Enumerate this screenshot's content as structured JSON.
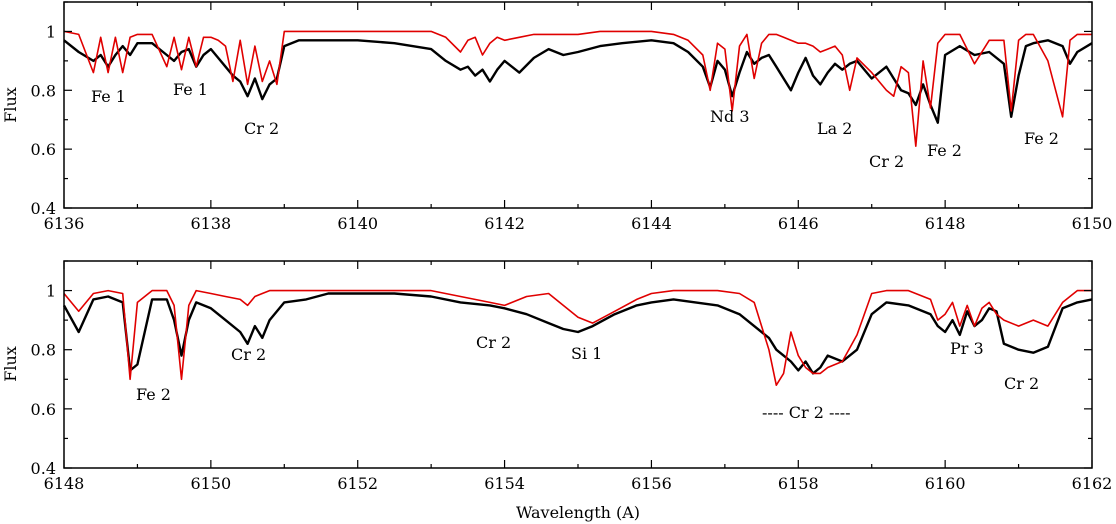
{
  "chart_data": [
    {
      "type": "line",
      "xlabel": "",
      "ylabel": "Flux",
      "xlim": [
        6136,
        6150
      ],
      "ylim": [
        0.4,
        1.1
      ],
      "xticks": [
        6136,
        6138,
        6140,
        6142,
        6144,
        6146,
        6148,
        6150
      ],
      "yticks": [
        0.4,
        0.6,
        0.8,
        1
      ],
      "grid": false,
      "series": [
        {
          "color": "#000000",
          "x": [
            6136.0,
            6136.2,
            6136.4,
            6136.5,
            6136.6,
            6136.7,
            6136.8,
            6136.9,
            6137.0,
            6137.2,
            6137.4,
            6137.5,
            6137.6,
            6137.7,
            6137.8,
            6137.9,
            6138.0,
            6138.1,
            6138.2,
            6138.3,
            6138.4,
            6138.5,
            6138.6,
            6138.7,
            6138.8,
            6138.9,
            6139.0,
            6139.2,
            6139.5,
            6140.0,
            6140.5,
            6141.0,
            6141.2,
            6141.4,
            6141.5,
            6141.6,
            6141.7,
            6141.8,
            6141.9,
            6142.0,
            6142.2,
            6142.4,
            6142.6,
            6142.8,
            6143.0,
            6143.3,
            6143.6,
            6144.0,
            6144.3,
            6144.5,
            6144.7,
            6144.8,
            6144.9,
            6145.0,
            6145.1,
            6145.2,
            6145.3,
            6145.4,
            6145.5,
            6145.6,
            6145.7,
            6145.8,
            6145.9,
            6146.0,
            6146.1,
            6146.2,
            6146.3,
            6146.4,
            6146.5,
            6146.6,
            6146.7,
            6146.8,
            6147.0,
            6147.2,
            6147.3,
            6147.4,
            6147.5,
            6147.6,
            6147.7,
            6147.8,
            6147.9,
            6148.0,
            6148.2,
            6148.4,
            6148.6,
            6148.8,
            6148.9,
            6149.0,
            6149.1,
            6149.2,
            6149.4,
            6149.6,
            6149.7,
            6149.8,
            6150.0
          ],
          "y": [
            0.97,
            0.93,
            0.9,
            0.92,
            0.88,
            0.92,
            0.95,
            0.92,
            0.96,
            0.96,
            0.92,
            0.9,
            0.93,
            0.94,
            0.88,
            0.92,
            0.94,
            0.91,
            0.88,
            0.85,
            0.83,
            0.78,
            0.84,
            0.77,
            0.82,
            0.84,
            0.95,
            0.97,
            0.97,
            0.97,
            0.96,
            0.94,
            0.9,
            0.87,
            0.88,
            0.85,
            0.87,
            0.83,
            0.87,
            0.9,
            0.86,
            0.91,
            0.94,
            0.92,
            0.93,
            0.95,
            0.96,
            0.97,
            0.96,
            0.93,
            0.88,
            0.81,
            0.9,
            0.87,
            0.78,
            0.86,
            0.93,
            0.89,
            0.91,
            0.92,
            0.88,
            0.84,
            0.8,
            0.86,
            0.91,
            0.85,
            0.82,
            0.86,
            0.89,
            0.87,
            0.89,
            0.9,
            0.84,
            0.88,
            0.84,
            0.8,
            0.79,
            0.75,
            0.82,
            0.75,
            0.69,
            0.92,
            0.95,
            0.92,
            0.93,
            0.89,
            0.71,
            0.85,
            0.95,
            0.96,
            0.97,
            0.95,
            0.89,
            0.93,
            0.96
          ]
        },
        {
          "color": "#e00000",
          "x": [
            6136.0,
            6136.2,
            6136.4,
            6136.5,
            6136.6,
            6136.7,
            6136.8,
            6136.9,
            6137.0,
            6137.2,
            6137.4,
            6137.5,
            6137.6,
            6137.7,
            6137.8,
            6137.9,
            6138.0,
            6138.1,
            6138.2,
            6138.3,
            6138.4,
            6138.5,
            6138.6,
            6138.7,
            6138.8,
            6138.9,
            6139.0,
            6139.2,
            6139.5,
            6140.0,
            6140.5,
            6141.0,
            6141.2,
            6141.4,
            6141.5,
            6141.6,
            6141.7,
            6141.8,
            6141.9,
            6142.0,
            6142.2,
            6142.4,
            6142.6,
            6142.8,
            6143.0,
            6143.3,
            6143.6,
            6144.0,
            6144.3,
            6144.5,
            6144.7,
            6144.8,
            6144.9,
            6145.0,
            6145.1,
            6145.2,
            6145.3,
            6145.4,
            6145.5,
            6145.6,
            6145.7,
            6145.8,
            6145.9,
            6146.0,
            6146.1,
            6146.2,
            6146.3,
            6146.4,
            6146.5,
            6146.6,
            6146.7,
            6146.8,
            6147.0,
            6147.2,
            6147.3,
            6147.4,
            6147.5,
            6147.6,
            6147.7,
            6147.8,
            6147.9,
            6148.0,
            6148.2,
            6148.4,
            6148.6,
            6148.8,
            6148.9,
            6149.0,
            6149.1,
            6149.2,
            6149.4,
            6149.6,
            6149.7,
            6149.8,
            6150.0
          ],
          "y": [
            1.0,
            0.99,
            0.86,
            0.98,
            0.86,
            0.98,
            0.86,
            0.98,
            0.99,
            0.99,
            0.88,
            0.98,
            0.87,
            0.98,
            0.88,
            0.98,
            0.98,
            0.97,
            0.95,
            0.83,
            0.97,
            0.82,
            0.95,
            0.83,
            0.9,
            0.82,
            1.0,
            1.0,
            1.0,
            1.0,
            1.0,
            1.0,
            0.98,
            0.93,
            0.97,
            0.98,
            0.92,
            0.96,
            0.98,
            0.97,
            0.98,
            0.99,
            0.99,
            0.99,
            0.99,
            1.0,
            1.0,
            1.0,
            0.99,
            0.97,
            0.92,
            0.8,
            0.96,
            0.94,
            0.73,
            0.95,
            0.99,
            0.84,
            0.96,
            0.99,
            0.99,
            0.98,
            0.97,
            0.96,
            0.96,
            0.95,
            0.93,
            0.94,
            0.95,
            0.92,
            0.8,
            0.91,
            0.86,
            0.8,
            0.78,
            0.88,
            0.86,
            0.61,
            0.9,
            0.74,
            0.96,
            0.99,
            0.99,
            0.89,
            0.97,
            0.97,
            0.73,
            0.97,
            0.99,
            0.99,
            0.9,
            0.71,
            0.97,
            0.99,
            0.99
          ]
        }
      ],
      "annotations": [
        "Fe 1",
        "Fe 1",
        "Cr 2",
        "Nd 3",
        "La 2",
        "Cr 2",
        "Fe 2",
        "Fe 2"
      ]
    },
    {
      "type": "line",
      "xlabel": "Wavelength (A)",
      "ylabel": "Flux",
      "xlim": [
        6148,
        6162
      ],
      "ylim": [
        0.4,
        1.1
      ],
      "xticks": [
        6148,
        6150,
        6152,
        6154,
        6156,
        6158,
        6160,
        6162
      ],
      "yticks": [
        0.4,
        0.6,
        0.8,
        1
      ],
      "grid": false,
      "series": [
        {
          "color": "#000000",
          "x": [
            6148.0,
            6148.2,
            6148.4,
            6148.6,
            6148.8,
            6148.9,
            6149.0,
            6149.2,
            6149.4,
            6149.5,
            6149.6,
            6149.7,
            6149.8,
            6150.0,
            6150.2,
            6150.4,
            6150.5,
            6150.6,
            6150.7,
            6150.8,
            6151.0,
            6151.3,
            6151.6,
            6152.0,
            6152.5,
            6153.0,
            6153.4,
            6153.8,
            6154.0,
            6154.3,
            6154.6,
            6154.8,
            6155.0,
            6155.2,
            6155.5,
            6155.8,
            6156.0,
            6156.3,
            6156.6,
            6156.9,
            6157.2,
            6157.4,
            6157.6,
            6157.7,
            6157.8,
            6157.9,
            6158.0,
            6158.1,
            6158.2,
            6158.3,
            6158.4,
            6158.6,
            6158.8,
            6159.0,
            6159.2,
            6159.5,
            6159.8,
            6159.9,
            6160.0,
            6160.1,
            6160.2,
            6160.3,
            6160.4,
            6160.5,
            6160.6,
            6160.7,
            6160.8,
            6161.0,
            6161.2,
            6161.4,
            6161.6,
            6161.8,
            6162.0
          ],
          "y": [
            0.95,
            0.86,
            0.97,
            0.98,
            0.96,
            0.73,
            0.75,
            0.97,
            0.97,
            0.9,
            0.78,
            0.9,
            0.96,
            0.94,
            0.9,
            0.86,
            0.82,
            0.88,
            0.84,
            0.9,
            0.96,
            0.97,
            0.99,
            0.99,
            0.99,
            0.98,
            0.96,
            0.95,
            0.94,
            0.92,
            0.89,
            0.87,
            0.86,
            0.88,
            0.92,
            0.95,
            0.96,
            0.97,
            0.96,
            0.95,
            0.92,
            0.88,
            0.84,
            0.8,
            0.78,
            0.76,
            0.73,
            0.76,
            0.72,
            0.74,
            0.78,
            0.76,
            0.8,
            0.92,
            0.96,
            0.95,
            0.92,
            0.88,
            0.86,
            0.9,
            0.85,
            0.93,
            0.88,
            0.9,
            0.94,
            0.93,
            0.82,
            0.8,
            0.79,
            0.81,
            0.94,
            0.96,
            0.97
          ]
        },
        {
          "color": "#e00000",
          "x": [
            6148.0,
            6148.2,
            6148.4,
            6148.6,
            6148.8,
            6148.9,
            6149.0,
            6149.2,
            6149.4,
            6149.5,
            6149.6,
            6149.7,
            6149.8,
            6150.0,
            6150.2,
            6150.4,
            6150.5,
            6150.6,
            6150.7,
            6150.8,
            6151.0,
            6151.3,
            6151.6,
            6152.0,
            6152.5,
            6153.0,
            6153.4,
            6153.8,
            6154.0,
            6154.3,
            6154.6,
            6154.8,
            6155.0,
            6155.2,
            6155.5,
            6155.8,
            6156.0,
            6156.3,
            6156.6,
            6156.9,
            6157.2,
            6157.4,
            6157.6,
            6157.7,
            6157.8,
            6157.9,
            6158.0,
            6158.1,
            6158.2,
            6158.3,
            6158.4,
            6158.6,
            6158.8,
            6159.0,
            6159.2,
            6159.5,
            6159.8,
            6159.9,
            6160.0,
            6160.1,
            6160.2,
            6160.3,
            6160.4,
            6160.5,
            6160.6,
            6160.7,
            6160.8,
            6161.0,
            6161.2,
            6161.4,
            6161.6,
            6161.8,
            6162.0
          ],
          "y": [
            0.99,
            0.93,
            0.99,
            1.0,
            0.99,
            0.7,
            0.96,
            1.0,
            1.0,
            0.95,
            0.7,
            0.95,
            1.0,
            0.99,
            0.98,
            0.97,
            0.95,
            0.98,
            0.99,
            1.0,
            1.0,
            1.0,
            1.0,
            1.0,
            1.0,
            1.0,
            0.98,
            0.96,
            0.95,
            0.98,
            0.99,
            0.95,
            0.91,
            0.89,
            0.93,
            0.97,
            0.99,
            1.0,
            1.0,
            1.0,
            0.99,
            0.96,
            0.8,
            0.68,
            0.72,
            0.86,
            0.78,
            0.74,
            0.72,
            0.72,
            0.74,
            0.76,
            0.85,
            0.99,
            1.0,
            1.0,
            0.97,
            0.9,
            0.92,
            0.96,
            0.88,
            0.95,
            0.88,
            0.94,
            0.96,
            0.92,
            0.9,
            0.88,
            0.9,
            0.88,
            0.96,
            1.0,
            1.0
          ]
        }
      ],
      "annotations": [
        "Fe 2",
        "Cr 2",
        "Cr 2",
        "Si 1",
        "---- Cr 2 ----",
        "Pr 3",
        "Cr 2"
      ]
    }
  ]
}
